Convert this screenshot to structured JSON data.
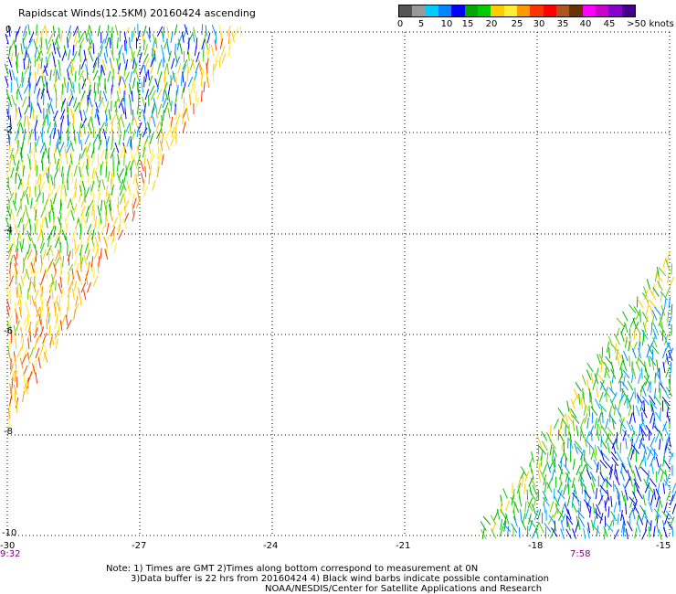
{
  "title": "Rapidscat Winds(12.5KM) 20160424 ascending",
  "legend": {
    "colors": [
      "#555555",
      "#999999",
      "#00ccff",
      "#0088ff",
      "#0000ff",
      "#00aa00",
      "#00cc00",
      "#ffcc00",
      "#ffee33",
      "#ff9900",
      "#ff3300",
      "#ff0000",
      "#aa5522",
      "#663300",
      "#ff00ff",
      "#cc00cc",
      "#8800cc",
      "#440088"
    ],
    "labels": [
      "0",
      "5",
      "10",
      "15",
      "20",
      "25",
      "30",
      "35",
      "40",
      "45",
      ">50 knots"
    ]
  },
  "axes": {
    "x_labels": [
      "-30",
      "-27",
      "-24",
      "-21",
      "-18",
      "-15"
    ],
    "y_labels": [
      "0",
      "-2",
      "-4",
      "-6",
      "-8",
      "-10"
    ]
  },
  "times": [
    "9:32",
    "7:58"
  ],
  "notes": [
    "Note: 1) Times are GMT 2)Times along bottom correspond to measurement at 0N",
    "3)Data buffer is 22 hrs from 20160424 4) Black wind barbs indicate possible contamination",
    "NOAA/NESDIS/Center for Satellite Applications and Research"
  ],
  "swaths": {
    "west_palette": [
      "#0000ff",
      "#0088ff",
      "#00aaff",
      "#00cc00",
      "#00aa00",
      "#66cc00",
      "#ffcc00",
      "#ffee33",
      "#ff9900",
      "#ff3300"
    ],
    "east_palette": [
      "#0000ff",
      "#0000cc",
      "#0088ff",
      "#00aaff",
      "#00cc00",
      "#00aa00",
      "#66cc00",
      "#ffcc00"
    ]
  }
}
